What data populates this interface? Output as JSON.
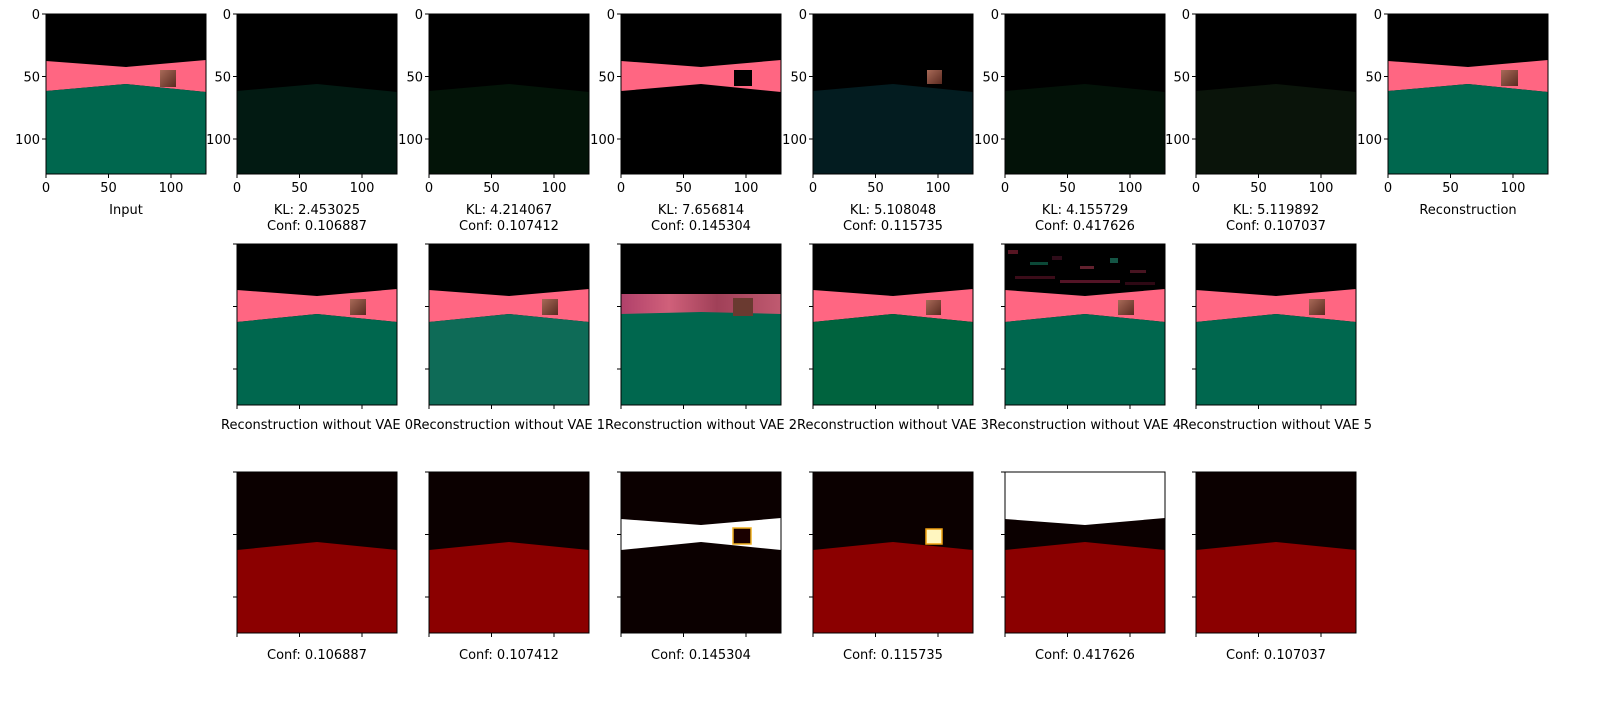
{
  "row1": {
    "input_caption": "Input",
    "recon_caption": "Reconstruction",
    "y_ticks": [
      "0",
      "50",
      "100"
    ],
    "x_ticks": [
      "0",
      "50",
      "100"
    ],
    "vaes": [
      {
        "kl": "KL: 2.453025",
        "conf": "Conf: 0.106887"
      },
      {
        "kl": "KL: 4.214067",
        "conf": "Conf: 0.107412"
      },
      {
        "kl": "KL: 7.656814",
        "conf": "Conf: 0.145304"
      },
      {
        "kl": "KL: 5.108048",
        "conf": "Conf: 0.115735"
      },
      {
        "kl": "KL: 4.155729",
        "conf": "Conf: 0.417626"
      },
      {
        "kl": "KL: 5.119892",
        "conf": "Conf: 0.107037"
      }
    ]
  },
  "row2": {
    "captions": [
      "Reconstruction without VAE 0",
      "Reconstruction without VAE 1",
      "Reconstruction without VAE 2",
      "Reconstruction without VAE 3",
      "Reconstruction without VAE 4",
      "Reconstruction without VAE 5"
    ]
  },
  "row3": {
    "captions": [
      "Conf: 0.106887",
      "Conf: 0.107412",
      "Conf: 0.145304",
      "Conf: 0.115735",
      "Conf: 0.417626",
      "Conf: 0.107037"
    ]
  },
  "colors": {
    "pink": "#ff6682",
    "teal": "#00674e",
    "dark_red": "#8b0000",
    "near_black": "#0b0000",
    "cube": "#8a4a3a"
  }
}
